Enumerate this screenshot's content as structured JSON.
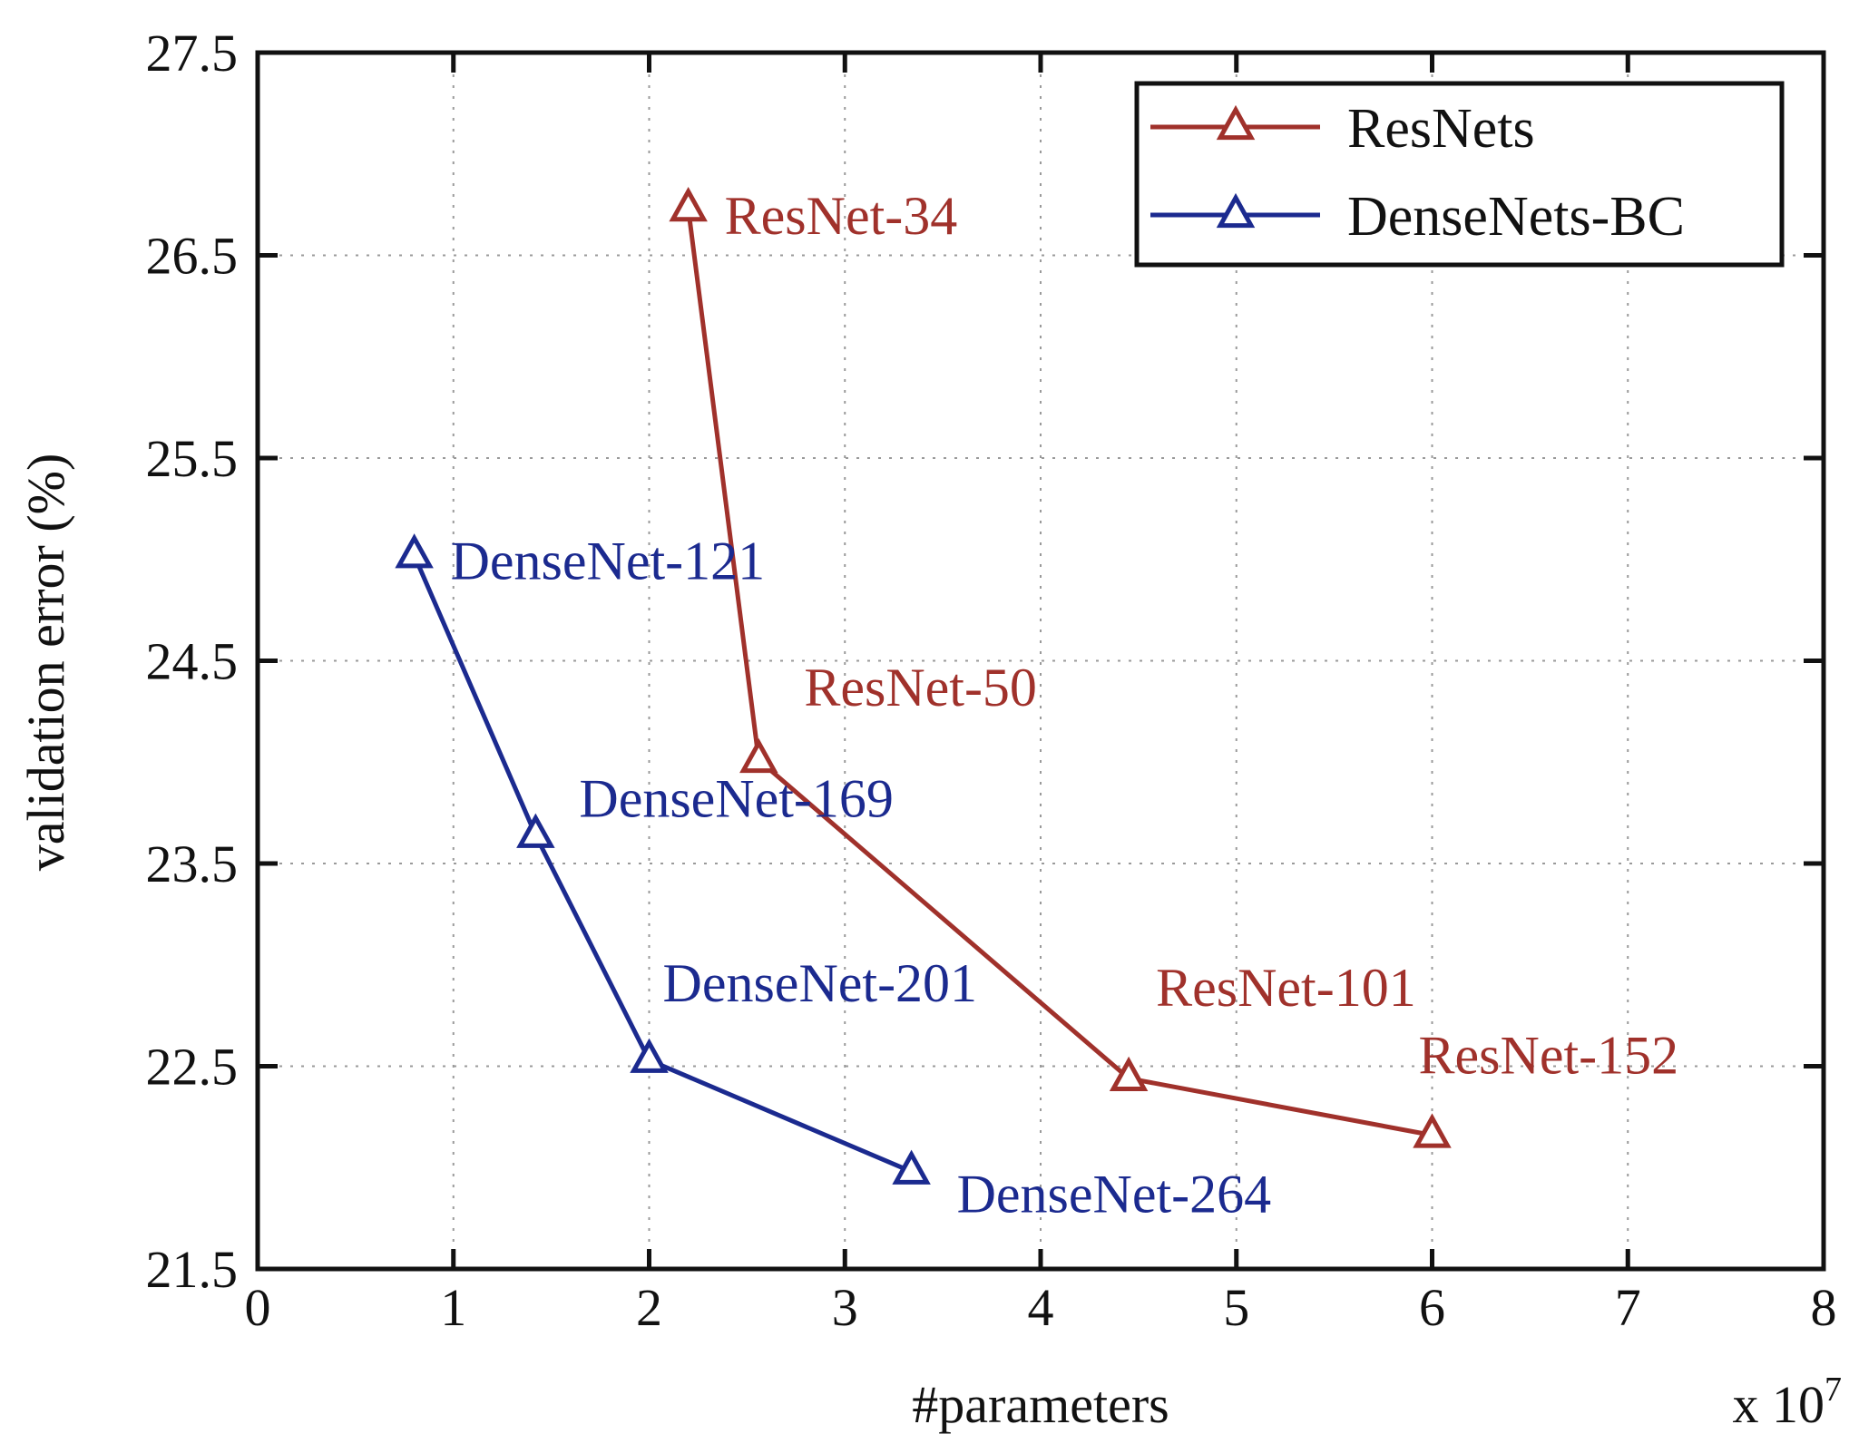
{
  "chart_data": {
    "type": "line",
    "title": "",
    "xlabel": "#parameters",
    "x_multiplier_label": "x 10",
    "x_multiplier_exponent": "7",
    "ylabel": "validation error (%)",
    "xlim": [
      0,
      8
    ],
    "ylim": [
      21.5,
      27.5
    ],
    "x_ticks": [
      "0",
      "1",
      "2",
      "3",
      "4",
      "5",
      "6",
      "7",
      "8"
    ],
    "y_ticks": [
      "21.5",
      "22.5",
      "23.5",
      "24.5",
      "25.5",
      "26.5",
      "27.5"
    ],
    "grid": true,
    "legend_position": "top-right",
    "series": [
      {
        "name": "ResNets",
        "color": "#a0312b",
        "marker": "triangle",
        "points": [
          {
            "x": 2.2,
            "y": 26.73,
            "label": "ResNet-34"
          },
          {
            "x": 2.56,
            "y": 24.01,
            "label": "ResNet-50"
          },
          {
            "x": 4.45,
            "y": 22.44,
            "label": "ResNet-101"
          },
          {
            "x": 6.0,
            "y": 22.16,
            "label": "ResNet-152"
          }
        ]
      },
      {
        "name": "DenseNets-BC",
        "color": "#1b2a8f",
        "marker": "triangle",
        "points": [
          {
            "x": 0.8,
            "y": 25.02,
            "label": "DenseNet-121"
          },
          {
            "x": 1.42,
            "y": 23.64,
            "label": "DenseNet-169"
          },
          {
            "x": 2.0,
            "y": 22.53,
            "label": "DenseNet-201"
          },
          {
            "x": 3.34,
            "y": 21.98,
            "label": "DenseNet-264"
          }
        ]
      }
    ]
  }
}
